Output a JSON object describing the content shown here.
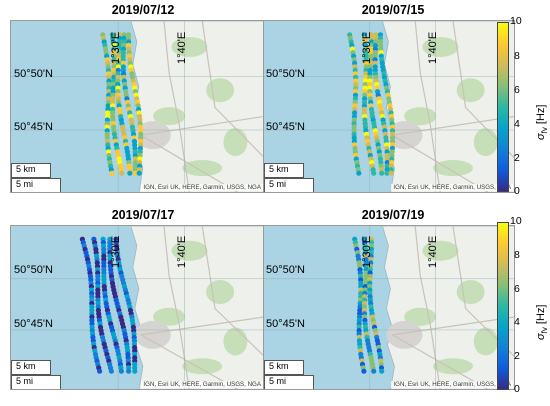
{
  "panels": [
    {
      "title": "2019/07/12",
      "lat_labels": [
        "50°50'N",
        "50°45'N"
      ],
      "lon_labels": [
        "1°30'E",
        "1°40'E"
      ],
      "scale_km": "5 km",
      "scale_mi": "5 mi",
      "attribution": "IGN, Esri UK, HERE, Garmin, USGS, NGA"
    },
    {
      "title": "2019/07/15",
      "lat_labels": [
        "50°50'N",
        "50°45'N"
      ],
      "lon_labels": [
        "1°30'E",
        "1°40'E"
      ],
      "scale_km": "5 km",
      "scale_mi": "5 mi",
      "attribution": "IGN, Esri UK, HERE, Garmin, USGS, NGA"
    },
    {
      "title": "2019/07/17",
      "lat_labels": [
        "50°50'N",
        "50°45'N"
      ],
      "lon_labels": [
        "1°30'E",
        "1°40'E"
      ],
      "scale_km": "5 km",
      "scale_mi": "5 mi",
      "attribution": "IGN, Esri UK, HERE, Garmin, USGS, NGA"
    },
    {
      "title": "2019/07/19",
      "lat_labels": [
        "50°50'N",
        "50°45'N"
      ],
      "lon_labels": [
        "1°30'E",
        "1°40'E"
      ],
      "scale_km": "5 km",
      "scale_mi": "5 mi",
      "attribution": "IGN, Esri UK, HERE, Garmin, USGS, NGA"
    }
  ],
  "colorbar": {
    "label": "σ fv [Hz]",
    "ticks": [
      "10",
      "8",
      "6",
      "4",
      "2",
      "0"
    ],
    "range": [
      0,
      10
    ],
    "colors": [
      "#352a87",
      "#0f5cdd",
      "#1481d6",
      "#06a4ca",
      "#2eb7a4",
      "#87bf77",
      "#d1bb59",
      "#fec832",
      "#f9fb0e"
    ]
  },
  "map_colors": {
    "sea": "#aad3e4",
    "land": "#eef0ec",
    "urban": "#d6d4d2",
    "green": "#c7dfb9",
    "road": "#c9c2b6"
  },
  "tracks": [
    {
      "panel": 0,
      "lines": 5,
      "level": "high"
    },
    {
      "panel": 1,
      "lines": 5,
      "level": "high"
    },
    {
      "panel": 2,
      "lines": 5,
      "level": "low"
    },
    {
      "panel": 3,
      "lines": 3,
      "level": "medium"
    }
  ]
}
